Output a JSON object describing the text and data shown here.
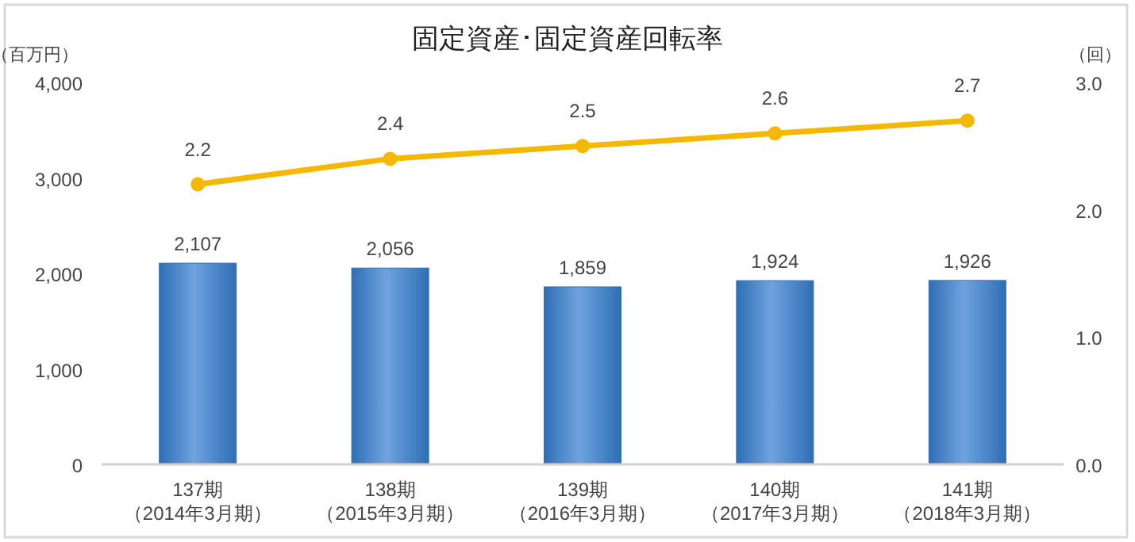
{
  "chart_data": {
    "type": "bar",
    "title": "固定資産･固定資産回転率",
    "ylabel": "（百万円）",
    "y2label": "（回）",
    "categories": [
      "137期（2014年3月期）",
      "138期（2015年3月期）",
      "139期（2016年3月期）",
      "140期（2017年3月期）",
      "141期（2018年3月期）"
    ],
    "series": [
      {
        "color": "#2f6eb5",
        "values": [
          2107,
          2056,
          1859,
          1924,
          1926
        ],
        "value_labels": [
          "2,107",
          "2,056",
          "1,859",
          "1,924",
          "1,926"
        ]
      },
      {
        "type": "line",
        "axis": "y2",
        "color": "#f5b800",
        "marker": "circle",
        "values": [
          2.2,
          2.4,
          2.5,
          2.6,
          2.7
        ],
        "value_labels": [
          "2.2",
          "2.4",
          "2.5",
          "2.6",
          "2.7"
        ]
      }
    ],
    "ylim": [
      0,
      4000
    ],
    "yticks": [
      0,
      {
        "value": 1000,
        "label": "1,000"
      },
      {
        "value": 2000,
        "label": "2,000"
      },
      {
        "value": 3000,
        "label": "3,000"
      },
      {
        "value": 4000,
        "label": "4,000"
      }
    ],
    "y2lim": [
      0,
      3
    ],
    "y2ticks": [
      {
        "value": 0,
        "label": "0.0"
      },
      {
        "value": 1,
        "label": "1.0"
      },
      {
        "value": 2,
        "label": "2.0"
      },
      {
        "value": 3,
        "label": "3.0"
      }
    ],
    "grid": false
  }
}
